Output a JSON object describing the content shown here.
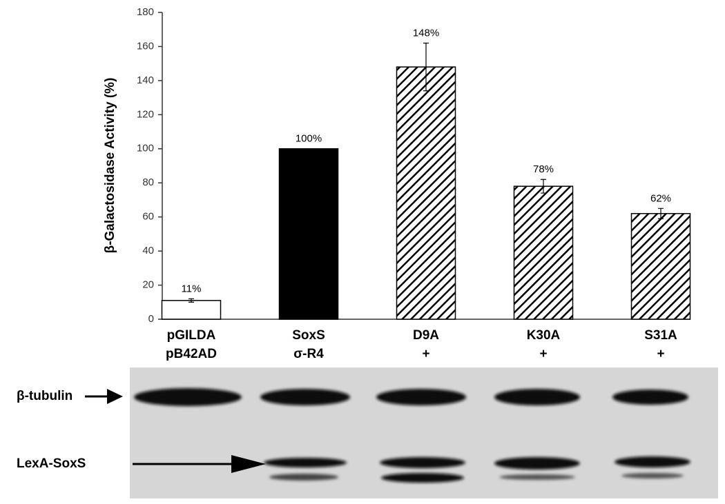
{
  "chart_data": {
    "type": "bar",
    "y_label": "β-Galactosidase Activity (%)",
    "categories": [
      [
        "pGILDA",
        "pB42AD"
      ],
      [
        "SoxS",
        "σ-R4"
      ],
      [
        "D9A",
        "+"
      ],
      [
        "K30A",
        "+"
      ],
      [
        "S31A",
        "+"
      ]
    ],
    "values": [
      11,
      100,
      148,
      78,
      62
    ],
    "value_labels": [
      "11%",
      "100%",
      "148%",
      "78%",
      "62%"
    ],
    "errors": [
      1,
      0,
      14,
      4,
      3
    ],
    "fills": [
      "#ffffff",
      "#000000",
      "hatched",
      "hatched",
      "hatched"
    ],
    "ylim": [
      0,
      180
    ],
    "yticks": [
      0,
      20,
      40,
      60,
      80,
      100,
      120,
      140,
      160,
      180
    ]
  },
  "blot": {
    "labels": [
      "β-tubulin",
      "LexA-SoxS"
    ]
  }
}
